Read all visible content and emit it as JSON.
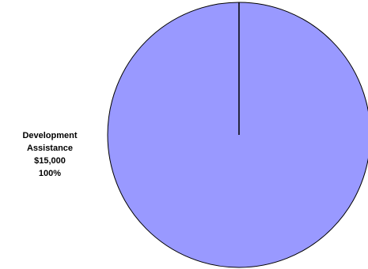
{
  "chart_data": {
    "type": "pie",
    "slices": [
      {
        "name": "Development Assistance",
        "name_lines": [
          "Development",
          "Assistance"
        ],
        "value": 15000,
        "value_label": "$15,000",
        "percent": 100,
        "percent_label": "100%",
        "color": "#9999ff"
      }
    ],
    "slice_border_color": "#000000",
    "legend": "none"
  }
}
